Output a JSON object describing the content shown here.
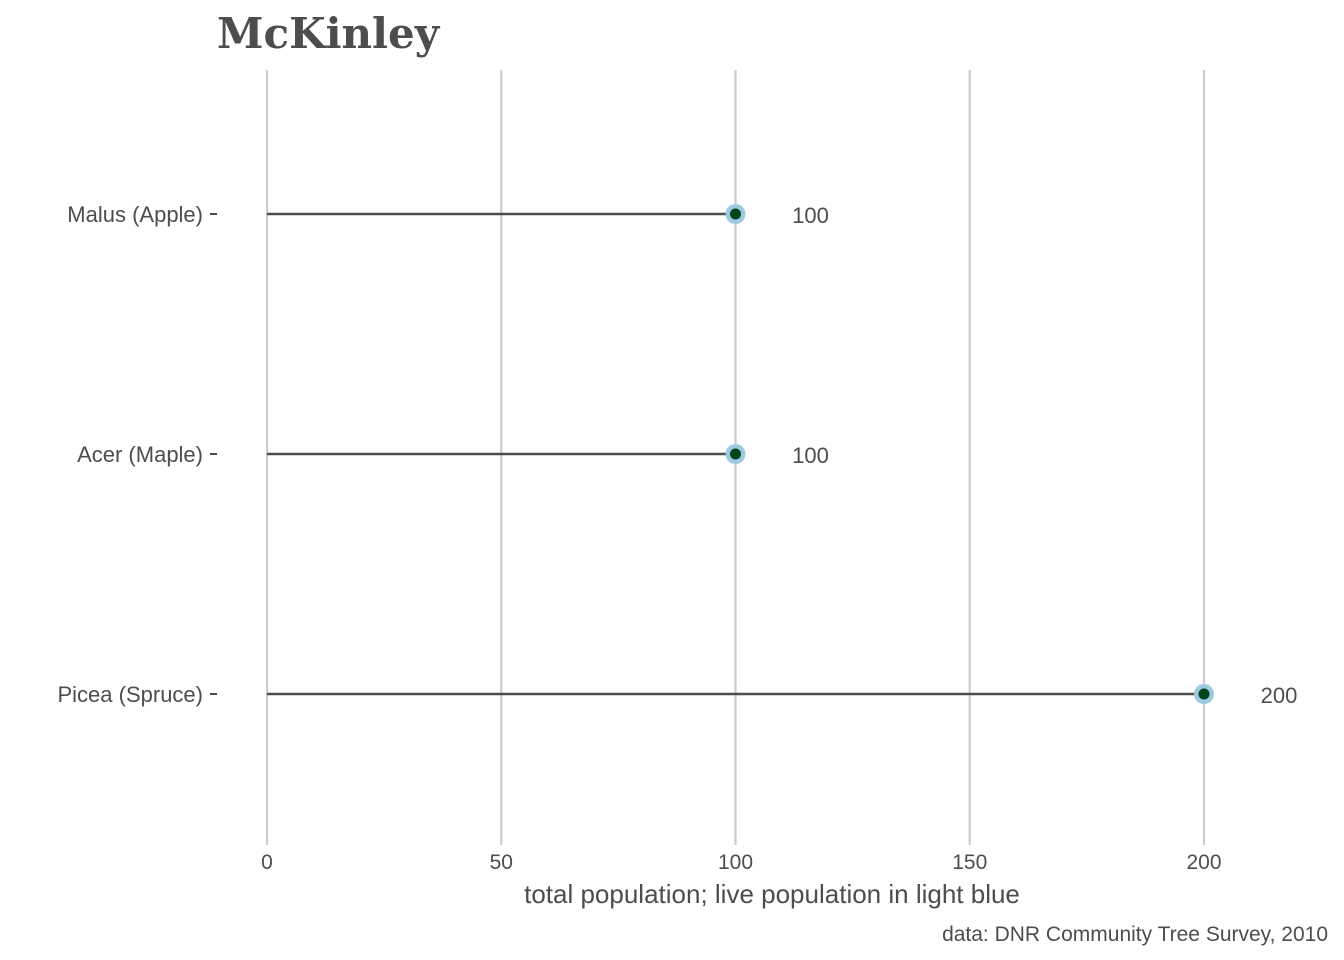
{
  "chart_data": {
    "type": "lollipop",
    "title": "McKinley",
    "xlabel": "total population; live population in light blue",
    "caption": "data: DNR Community Tree Survey, 2010",
    "categories": [
      "Malus (Apple)",
      "Acer (Maple)",
      "Picea (Spruce)"
    ],
    "series": [
      {
        "name": "total population",
        "values": [
          100,
          100,
          200
        ]
      },
      {
        "name": "live population",
        "values": [
          100,
          100,
          200
        ]
      }
    ],
    "value_labels": [
      "100",
      "100",
      "200"
    ],
    "xlim": [
      0,
      210
    ],
    "x_ticks": [
      0,
      50,
      100,
      150,
      200
    ],
    "grid": "vertical",
    "colors": {
      "total_point": "#00441b",
      "live_point": "#9ecae1",
      "segment": "#4d4d4d",
      "grid": "#cccccc",
      "text": "#4d4d4d"
    }
  }
}
